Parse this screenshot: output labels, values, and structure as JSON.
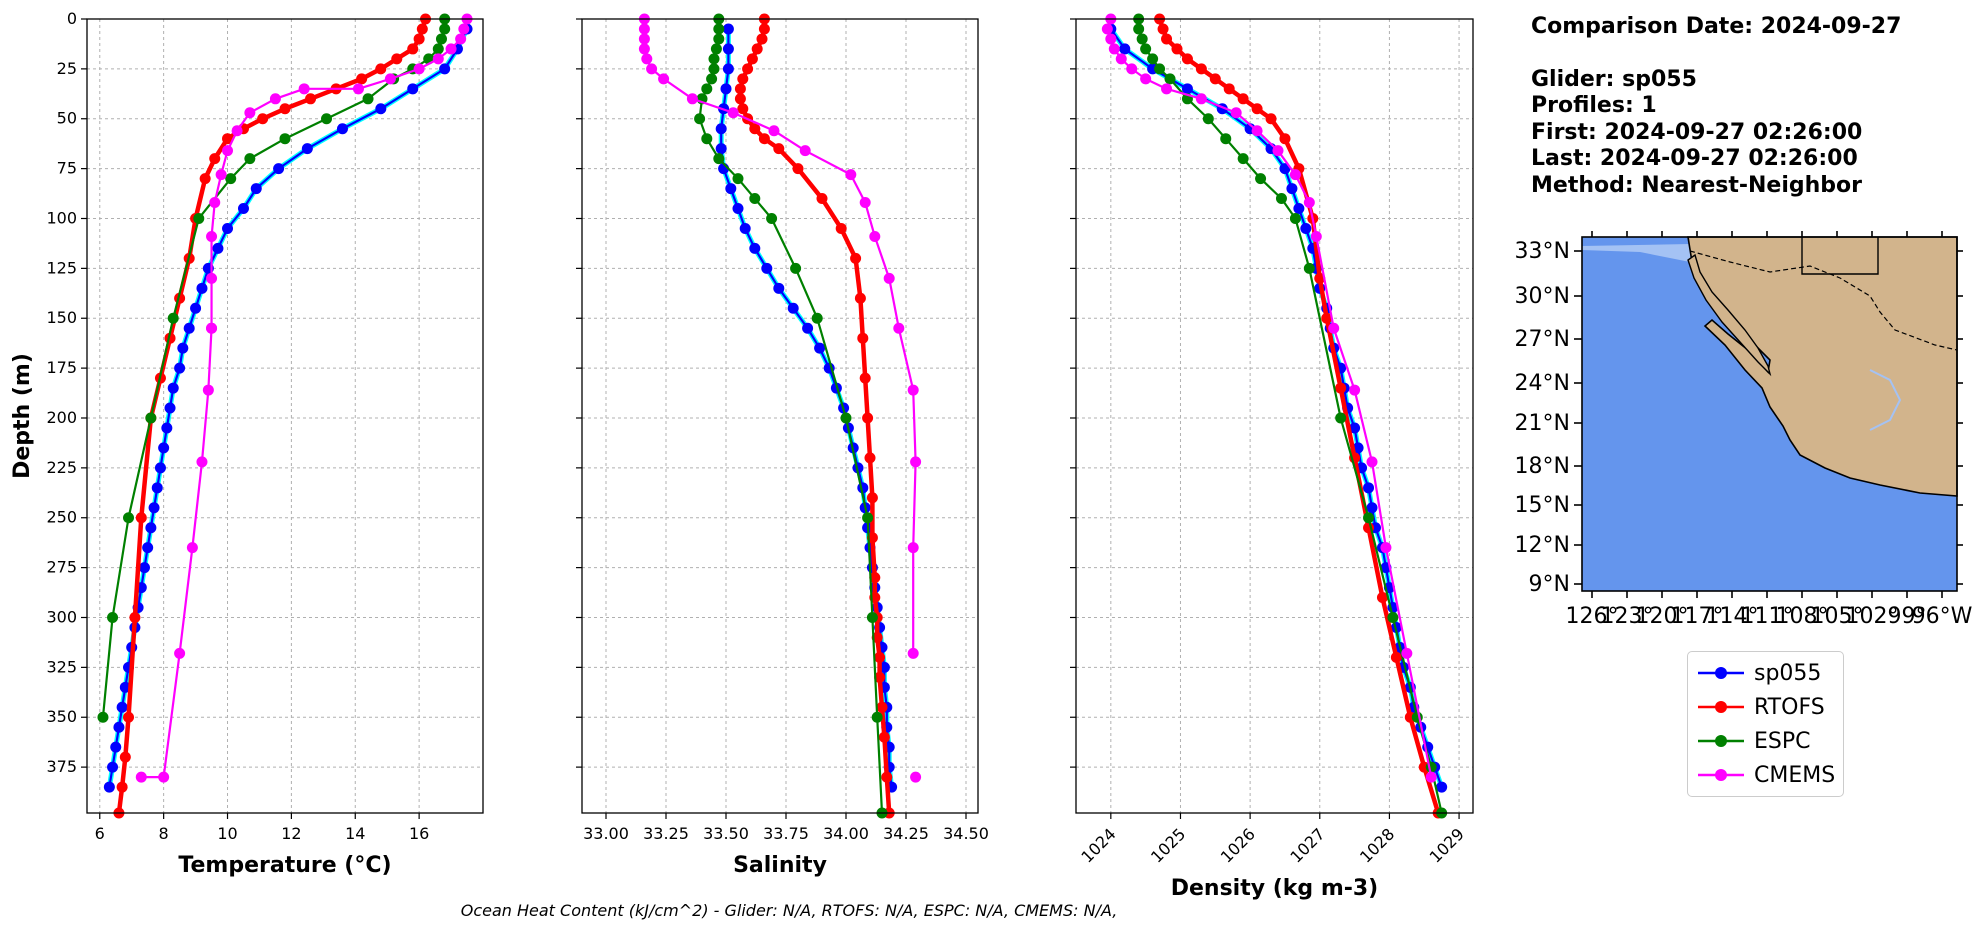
{
  "chart_data": [
    {
      "type": "line",
      "xlabel": "Temperature (°C)",
      "ylabel": "Depth (m)",
      "xlim": [
        5.6,
        18.0
      ],
      "ylim": [
        398,
        0
      ],
      "xticks": [
        6,
        8,
        10,
        12,
        14,
        16
      ],
      "yticks": [
        0,
        25,
        50,
        75,
        100,
        125,
        150,
        175,
        200,
        225,
        250,
        275,
        300,
        325,
        350,
        375
      ],
      "grid": true,
      "series": [
        {
          "name": "sp055",
          "color": "#0000ff",
          "x": [
            17.5,
            17.2,
            16.8,
            15.8,
            14.8,
            13.6,
            12.5,
            11.6,
            10.9,
            10.5,
            10.0,
            9.7,
            9.4,
            9.2,
            9.0,
            8.8,
            8.6,
            8.5,
            8.3,
            8.2,
            8.1,
            8.0,
            7.9,
            7.8,
            7.7,
            7.6,
            7.5,
            7.4,
            7.3,
            7.2,
            7.1,
            7.0,
            6.9,
            6.8,
            6.7,
            6.6,
            6.5,
            6.4,
            6.3
          ],
          "y": [
            5,
            15,
            25,
            35,
            45,
            55,
            65,
            75,
            85,
            95,
            105,
            115,
            125,
            135,
            145,
            155,
            165,
            175,
            185,
            195,
            205,
            215,
            225,
            235,
            245,
            255,
            265,
            275,
            285,
            295,
            305,
            315,
            325,
            335,
            345,
            355,
            365,
            375,
            385
          ]
        },
        {
          "name": "RTOFS",
          "color": "#ff0000",
          "x": [
            16.2,
            16.1,
            16.0,
            15.8,
            15.3,
            14.8,
            14.2,
            13.4,
            12.6,
            11.8,
            11.1,
            10.5,
            10.0,
            9.6,
            9.3,
            9.0,
            8.8,
            8.5,
            8.2,
            7.9,
            7.6,
            7.3,
            7.1,
            6.9,
            6.8,
            6.7,
            6.6
          ],
          "y": [
            0,
            5,
            10,
            15,
            20,
            25,
            30,
            35,
            40,
            45,
            50,
            55,
            60,
            70,
            80,
            100,
            120,
            140,
            160,
            180,
            200,
            250,
            300,
            350,
            370,
            385,
            398
          ]
        },
        {
          "name": "ESPC",
          "color": "#008000",
          "x": [
            16.8,
            16.8,
            16.7,
            16.6,
            16.3,
            15.8,
            15.2,
            14.4,
            13.1,
            11.8,
            10.7,
            10.1,
            9.1,
            8.3,
            7.6,
            6.9,
            6.4,
            6.1
          ],
          "y": [
            0,
            5,
            10,
            15,
            20,
            25,
            30,
            40,
            50,
            60,
            70,
            80,
            100,
            150,
            200,
            250,
            300,
            350
          ]
        },
        {
          "name": "CMEMS",
          "color": "#ff00ff",
          "x": [
            17.5,
            17.4,
            17.3,
            17.0,
            16.6,
            16.0,
            15.1,
            14.1,
            12.4,
            11.5,
            10.7,
            10.3,
            10.0,
            9.8,
            9.6,
            9.5,
            9.5,
            9.5,
            9.5,
            9.4,
            9.2,
            8.9,
            8.5,
            8.0,
            7.3
          ],
          "y": [
            0,
            5,
            10,
            15,
            20,
            25,
            30,
            35,
            35,
            40,
            47,
            56,
            66,
            78,
            92,
            109,
            130,
            155,
            155,
            186,
            222,
            265,
            318,
            380,
            380
          ]
        }
      ]
    },
    {
      "type": "line",
      "xlabel": "Salinity",
      "xlim": [
        32.9,
        34.55
      ],
      "ylim": [
        398,
        0
      ],
      "xticks": [
        "33.00",
        "33.25",
        "33.50",
        "33.75",
        "34.00",
        "34.25",
        "34.50"
      ],
      "grid": true,
      "series": [
        {
          "name": "sp055",
          "color": "#0000ff",
          "x": [
            33.51,
            33.51,
            33.51,
            33.5,
            33.49,
            33.48,
            33.48,
            33.49,
            33.52,
            33.55,
            33.58,
            33.62,
            33.67,
            33.72,
            33.78,
            33.84,
            33.89,
            33.93,
            33.96,
            33.99,
            34.01,
            34.03,
            34.05,
            34.07,
            34.08,
            34.09,
            34.1,
            34.11,
            34.12,
            34.13,
            34.14,
            34.15,
            34.16,
            34.16,
            34.17,
            34.17,
            34.18,
            34.18,
            34.19
          ],
          "y": [
            5,
            15,
            25,
            35,
            45,
            55,
            65,
            75,
            85,
            95,
            105,
            115,
            125,
            135,
            145,
            155,
            165,
            175,
            185,
            195,
            205,
            215,
            225,
            235,
            245,
            255,
            265,
            275,
            285,
            295,
            305,
            315,
            325,
            335,
            345,
            355,
            365,
            375,
            385
          ]
        },
        {
          "name": "RTOFS",
          "color": "#ff0000",
          "x": [
            33.66,
            33.66,
            33.65,
            33.63,
            33.61,
            33.59,
            33.57,
            33.56,
            33.56,
            33.57,
            33.59,
            33.62,
            33.66,
            33.72,
            33.8,
            33.9,
            33.98,
            34.04,
            34.06,
            34.07,
            34.08,
            34.09,
            34.1,
            34.11,
            34.11,
            34.12,
            34.12,
            34.13,
            34.13,
            34.14,
            34.14,
            34.15,
            34.16,
            34.17,
            34.18
          ],
          "y": [
            0,
            5,
            10,
            15,
            20,
            25,
            30,
            35,
            40,
            45,
            50,
            55,
            60,
            65,
            75,
            90,
            105,
            120,
            140,
            160,
            180,
            200,
            220,
            240,
            260,
            280,
            290,
            300,
            310,
            320,
            330,
            345,
            360,
            380,
            398
          ]
        },
        {
          "name": "ESPC",
          "color": "#008000",
          "x": [
            33.47,
            33.47,
            33.47,
            33.46,
            33.45,
            33.45,
            33.44,
            33.42,
            33.4,
            33.39,
            33.42,
            33.47,
            33.55,
            33.62,
            33.69,
            33.79,
            33.88,
            34.0,
            34.09,
            34.11,
            34.13,
            34.15
          ],
          "y": [
            0,
            5,
            10,
            15,
            20,
            25,
            30,
            35,
            40,
            50,
            60,
            70,
            80,
            90,
            100,
            125,
            150,
            200,
            250,
            300,
            350,
            398
          ]
        },
        {
          "name": "CMEMS",
          "color": "#ff00ff",
          "x": [
            33.16,
            33.16,
            33.16,
            33.16,
            33.17,
            33.19,
            33.24,
            33.36,
            33.53,
            33.7,
            33.83,
            34.02,
            34.08,
            34.12,
            34.18,
            34.22,
            34.28,
            34.29,
            34.28,
            34.28
          ],
          "y": [
            0,
            5,
            10,
            15,
            20,
            25,
            30,
            40,
            47,
            56,
            66,
            78,
            92,
            109,
            130,
            155,
            186,
            222,
            265,
            318
          ]
        },
        {
          "name": "CMEMS-deep",
          "color": "#ff00ff",
          "x": [
            34.29
          ],
          "y": [
            380
          ]
        }
      ]
    },
    {
      "type": "line",
      "xlabel": "Density (kg m-3)",
      "xlim": [
        1023.5,
        1029.2
      ],
      "ylim": [
        398,
        0
      ],
      "xticks": [
        1024,
        1025,
        1026,
        1027,
        1028,
        1029
      ],
      "grid": true,
      "series": [
        {
          "name": "sp055",
          "color": "#0000ff",
          "x": [
            1024.0,
            1024.2,
            1024.6,
            1025.1,
            1025.6,
            1026.0,
            1026.3,
            1026.5,
            1026.6,
            1026.7,
            1026.8,
            1026.9,
            1026.95,
            1027.0,
            1027.1,
            1027.15,
            1027.2,
            1027.3,
            1027.35,
            1027.4,
            1027.5,
            1027.55,
            1027.6,
            1027.7,
            1027.75,
            1027.8,
            1027.9,
            1027.95,
            1028.0,
            1028.05,
            1028.1,
            1028.15,
            1028.2,
            1028.3,
            1028.35,
            1028.45,
            1028.55,
            1028.65,
            1028.75
          ],
          "y": [
            5,
            15,
            25,
            35,
            45,
            55,
            65,
            75,
            85,
            95,
            105,
            115,
            125,
            135,
            145,
            155,
            165,
            175,
            185,
            195,
            205,
            215,
            225,
            235,
            245,
            255,
            265,
            275,
            285,
            295,
            305,
            315,
            325,
            335,
            345,
            355,
            365,
            375,
            385
          ]
        },
        {
          "name": "RTOFS",
          "color": "#ff0000",
          "x": [
            1024.7,
            1024.75,
            1024.8,
            1024.95,
            1025.1,
            1025.3,
            1025.5,
            1025.7,
            1025.9,
            1026.1,
            1026.3,
            1026.5,
            1026.7,
            1026.9,
            1027.0,
            1027.1,
            1027.3,
            1027.5,
            1027.7,
            1027.9,
            1028.1,
            1028.3,
            1028.5,
            1028.7
          ],
          "y": [
            0,
            5,
            10,
            15,
            20,
            25,
            30,
            35,
            40,
            45,
            50,
            60,
            75,
            100,
            130,
            150,
            185,
            220,
            255,
            290,
            320,
            350,
            375,
            398
          ]
        },
        {
          "name": "ESPC",
          "color": "#008000",
          "x": [
            1024.4,
            1024.4,
            1024.45,
            1024.5,
            1024.6,
            1024.7,
            1024.85,
            1025.1,
            1025.4,
            1025.65,
            1025.9,
            1026.15,
            1026.45,
            1026.65,
            1026.85,
            1027.3,
            1027.7,
            1028.05,
            1028.4,
            1028.6,
            1028.75
          ],
          "y": [
            0,
            5,
            10,
            15,
            20,
            25,
            30,
            40,
            50,
            60,
            70,
            80,
            90,
            100,
            125,
            200,
            250,
            300,
            350,
            375,
            398
          ]
        },
        {
          "name": "CMEMS",
          "color": "#ff00ff",
          "x": [
            1024.0,
            1023.95,
            1024.0,
            1024.05,
            1024.15,
            1024.3,
            1024.5,
            1024.8,
            1025.3,
            1025.8,
            1026.1,
            1026.4,
            1026.65,
            1026.85,
            1026.95,
            1027.2,
            1027.5,
            1027.75,
            1027.95,
            1028.25,
            1028.6
          ],
          "y": [
            0,
            5,
            10,
            15,
            20,
            25,
            30,
            35,
            40,
            47,
            56,
            66,
            78,
            92,
            109,
            155,
            186,
            222,
            265,
            318,
            380
          ]
        }
      ]
    },
    {
      "type": "map",
      "lat_labels": [
        "33°N",
        "30°N",
        "27°N",
        "24°N",
        "21°N",
        "18°N",
        "15°N",
        "12°N",
        "9°N"
      ],
      "lon_labels": [
        "126°",
        "123°",
        "120°",
        "117°",
        "114°",
        "111°",
        "108°",
        "105°",
        "102°",
        "99°",
        "96°W"
      ],
      "ocean_color": "#6495ed",
      "land_color": "#d2b48c"
    }
  ],
  "info": {
    "comparison_date": "Comparison Date: 2024-09-27",
    "glider": "Glider: sp055",
    "profiles": "Profiles: 1",
    "first": "First: 2024-09-27 02:26:00",
    "last": "Last: 2024-09-27 02:26:00",
    "method": "Method: Nearest-Neighbor"
  },
  "legend": [
    {
      "label": "sp055",
      "color": "#0000ff"
    },
    {
      "label": "RTOFS",
      "color": "#ff0000"
    },
    {
      "label": "ESPC",
      "color": "#008000"
    },
    {
      "label": "CMEMS",
      "color": "#ff00ff"
    }
  ],
  "footer": "Ocean Heat Content (kJ/cm^2) - Glider: N/A,  RTOFS: N/A,  ESPC: N/A,  CMEMS: N/A,"
}
